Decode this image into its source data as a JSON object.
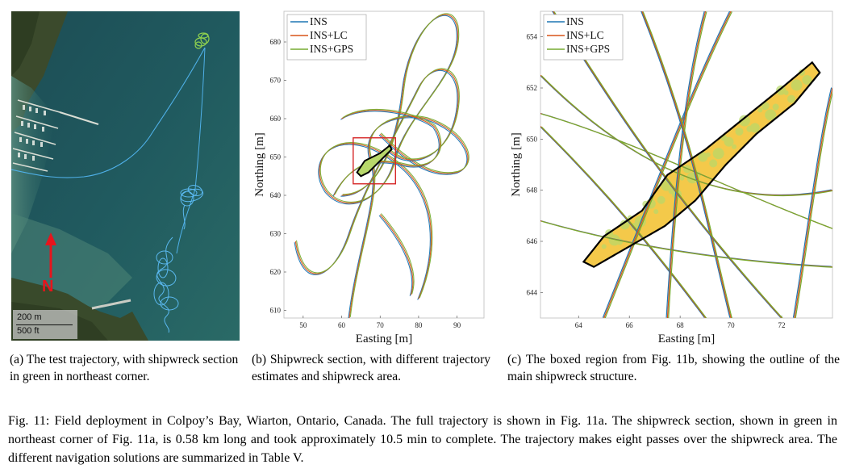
{
  "panel_a": {
    "scale_m": "200 m",
    "scale_ft": "500 ft",
    "north": "N",
    "caption": "(a) The test trajectory, with shipwreck section in green in northeast corner."
  },
  "panel_b": {
    "caption": "(b) Shipwreck section, with different trajectory estimates and shipwreck area."
  },
  "panel_c": {
    "caption": "(c) The boxed region from Fig. 11b, showing the outline of the main shipwreck structure."
  },
  "figure_caption": "Fig. 11: Field deployment in Colpoy’s Bay, Wiarton, Ontario, Canada. The full trajectory is shown in Fig. 11a. The shipwreck section, shown in green in northeast corner of Fig. 11a, is 0.58 km long and took approximately 10.5 min to complete. The trajectory makes eight passes over the shipwreck area. The different navigation solutions are summarized in Table V.",
  "colors": {
    "ins": "#1f77b4",
    "ins_lc": "#d95319",
    "ins_gps": "#77ac30",
    "box": "#d62728"
  },
  "chart_data": [
    {
      "type": "line",
      "xlabel": "Easting [m]",
      "ylabel": "Northing [m]",
      "xlim": [
        45,
        97
      ],
      "ylim": [
        608,
        688
      ],
      "xticks": [
        "50",
        "60",
        "70",
        "80",
        "90"
      ],
      "yticks": [
        "610",
        "620",
        "630",
        "640",
        "650",
        "660",
        "670",
        "680"
      ],
      "legend": [
        "INS",
        "INS+LC",
        "INS+GPS"
      ],
      "legend_position": "top-left",
      "box": {
        "x": [
          63,
          74
        ],
        "y": [
          643,
          655
        ]
      }
    },
    {
      "type": "line",
      "xlabel": "Easting [m]",
      "ylabel": "Northing [m]",
      "xlim": [
        62.5,
        74
      ],
      "ylim": [
        643,
        655
      ],
      "xticks": [
        "64",
        "66",
        "68",
        "70",
        "72"
      ],
      "yticks": [
        "644",
        "646",
        "648",
        "650",
        "652",
        "654"
      ],
      "legend": [
        "INS",
        "INS+LC",
        "INS+GPS"
      ],
      "legend_position": "top-left"
    }
  ]
}
